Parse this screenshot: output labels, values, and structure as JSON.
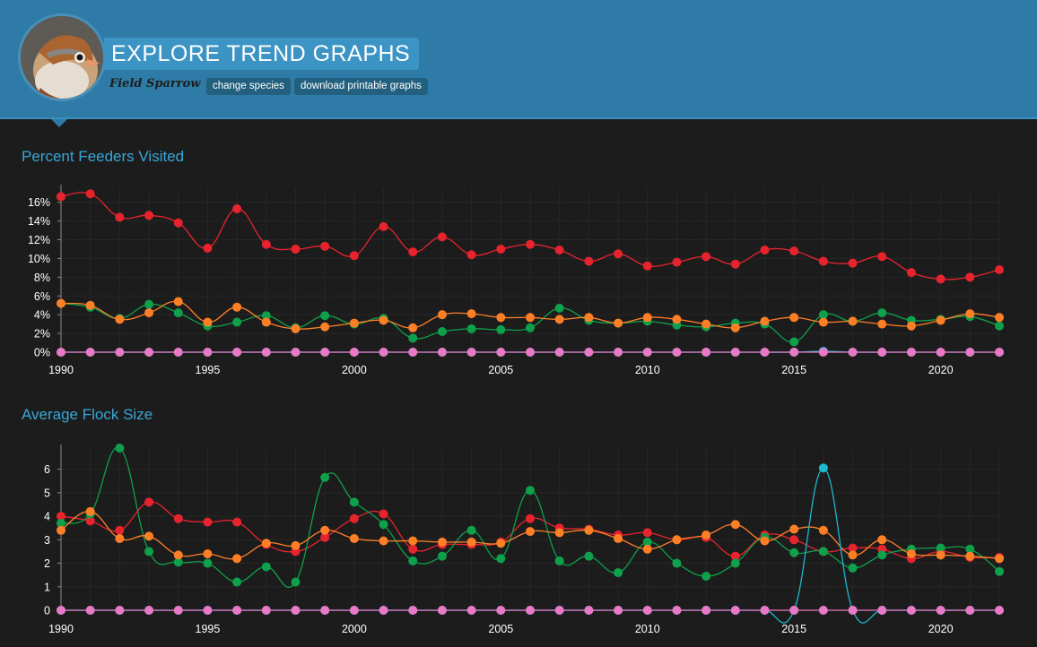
{
  "header": {
    "title": "EXPLORE TREND GRAPHS",
    "species": "Field Sparrow",
    "change_species_label": "change species",
    "download_label": "download printable graphs",
    "avatar_icon": "sparrow-photo-icon"
  },
  "chart_data": [
    {
      "type": "line",
      "title": "Percent Feeders Visited",
      "x": [
        1990,
        1991,
        1992,
        1993,
        1994,
        1995,
        1996,
        1997,
        1998,
        1999,
        2000,
        2001,
        2002,
        2003,
        2004,
        2005,
        2006,
        2007,
        2008,
        2009,
        2010,
        2011,
        2012,
        2013,
        2014,
        2015,
        2016,
        2017,
        2018,
        2019,
        2020,
        2021,
        2022
      ],
      "xticks": [
        1990,
        1995,
        2000,
        2005,
        2010,
        2015,
        2020
      ],
      "yticks": [
        0,
        2,
        4,
        6,
        8,
        10,
        12,
        14,
        16
      ],
      "ytick_suffix": "%",
      "ylim": [
        0,
        17.5
      ],
      "xlim": [
        1990,
        2022
      ],
      "series": [
        {
          "color": "#e7242d",
          "values": [
            16.6,
            16.9,
            14.4,
            14.6,
            13.8,
            11.1,
            15.3,
            11.5,
            11.0,
            11.3,
            10.3,
            13.4,
            10.7,
            12.3,
            10.4,
            11.0,
            11.5,
            10.9,
            9.7,
            10.5,
            9.2,
            9.6,
            10.2,
            9.4,
            10.9,
            10.8,
            9.7,
            9.5,
            10.2,
            8.5,
            7.8,
            8.0,
            8.8
          ]
        },
        {
          "color": "#0ea04b",
          "values": [
            5.2,
            4.8,
            3.6,
            5.1,
            4.2,
            2.8,
            3.2,
            3.9,
            2.6,
            3.9,
            3.0,
            3.6,
            1.5,
            2.2,
            2.5,
            2.4,
            2.6,
            4.7,
            3.4,
            3.1,
            3.3,
            2.9,
            2.7,
            3.1,
            3.0,
            1.1,
            4.0,
            3.3,
            4.2,
            3.4,
            3.5,
            3.8,
            2.8
          ]
        },
        {
          "color": "#ff7f27",
          "values": [
            5.2,
            5.0,
            3.5,
            4.2,
            5.4,
            3.2,
            4.8,
            3.2,
            2.5,
            2.7,
            3.1,
            3.4,
            2.6,
            4.0,
            4.1,
            3.7,
            3.7,
            3.5,
            3.7,
            3.1,
            3.7,
            3.5,
            3.0,
            2.6,
            3.3,
            3.7,
            3.2,
            3.3,
            3.0,
            2.8,
            3.4,
            4.1,
            3.7
          ]
        },
        {
          "color": "#1bb8cf",
          "values": [
            0,
            0,
            0,
            0,
            0,
            0,
            0,
            0,
            0,
            0,
            0,
            0,
            0,
            0,
            0,
            0,
            0,
            0,
            0,
            0,
            0,
            0,
            0,
            0,
            0,
            0,
            0.1,
            0,
            0,
            0,
            0,
            0,
            0
          ]
        },
        {
          "color": "#e978c6",
          "values": [
            0,
            0,
            0,
            0,
            0,
            0,
            0,
            0,
            0,
            0,
            0,
            0,
            0,
            0,
            0,
            0,
            0,
            0,
            0,
            0,
            0,
            0,
            0,
            0,
            0,
            0,
            0,
            0,
            0,
            0,
            0,
            0,
            0
          ]
        }
      ]
    },
    {
      "type": "line",
      "title": "Average Flock Size",
      "x": [
        1990,
        1991,
        1992,
        1993,
        1994,
        1995,
        1996,
        1997,
        1998,
        1999,
        2000,
        2001,
        2002,
        2003,
        2004,
        2005,
        2006,
        2007,
        2008,
        2009,
        2010,
        2011,
        2012,
        2013,
        2014,
        2015,
        2016,
        2017,
        2018,
        2019,
        2020,
        2021,
        2022
      ],
      "xticks": [
        1990,
        1995,
        2000,
        2005,
        2010,
        2015,
        2020
      ],
      "yticks": [
        0,
        1,
        2,
        3,
        4,
        5,
        6
      ],
      "ytick_suffix": "",
      "ylim": [
        0,
        6.9
      ],
      "xlim": [
        1990,
        2022
      ],
      "series": [
        {
          "color": "#e7242d",
          "values": [
            4.0,
            3.8,
            3.4,
            4.6,
            3.9,
            3.75,
            3.75,
            2.8,
            2.5,
            3.1,
            3.9,
            4.1,
            2.6,
            2.8,
            2.8,
            2.9,
            3.9,
            3.5,
            3.45,
            3.2,
            3.3,
            3.0,
            3.1,
            2.3,
            3.2,
            3.0,
            2.5,
            2.65,
            2.6,
            2.2,
            2.5,
            2.25,
            2.25
          ]
        },
        {
          "color": "#0ea04b",
          "values": [
            3.7,
            4.1,
            6.9,
            2.5,
            2.05,
            2.0,
            1.2,
            1.85,
            1.2,
            5.65,
            4.6,
            3.65,
            2.1,
            2.3,
            3.4,
            2.2,
            5.1,
            2.1,
            2.3,
            1.6,
            2.9,
            2.0,
            1.45,
            2.0,
            3.1,
            2.45,
            2.5,
            1.8,
            2.35,
            2.6,
            2.65,
            2.6,
            1.65
          ]
        },
        {
          "color": "#ff7f27",
          "values": [
            3.4,
            4.2,
            3.05,
            3.15,
            2.35,
            2.4,
            2.2,
            2.85,
            2.75,
            3.4,
            3.05,
            2.95,
            2.95,
            2.9,
            2.9,
            2.85,
            3.35,
            3.3,
            3.4,
            3.05,
            2.6,
            3.0,
            3.2,
            3.65,
            2.95,
            3.45,
            3.4,
            2.35,
            3.0,
            2.4,
            2.35,
            2.3,
            2.2
          ]
        },
        {
          "color": "#1bb8cf",
          "values": [
            0,
            0,
            0,
            0,
            0,
            0,
            0,
            0,
            0,
            0,
            0,
            0,
            0,
            0,
            0,
            0,
            0,
            0,
            0,
            0,
            0,
            0,
            0,
            0,
            0,
            0,
            6.05,
            0,
            0,
            0,
            0,
            0,
            0
          ]
        },
        {
          "color": "#e978c6",
          "values": [
            0,
            0,
            0,
            0,
            0,
            0,
            0,
            0,
            0,
            0,
            0,
            0,
            0,
            0,
            0,
            0,
            0,
            0,
            0,
            0,
            0,
            0,
            0,
            0,
            0,
            0,
            0,
            0,
            0,
            0,
            0,
            0,
            0
          ]
        }
      ]
    }
  ]
}
